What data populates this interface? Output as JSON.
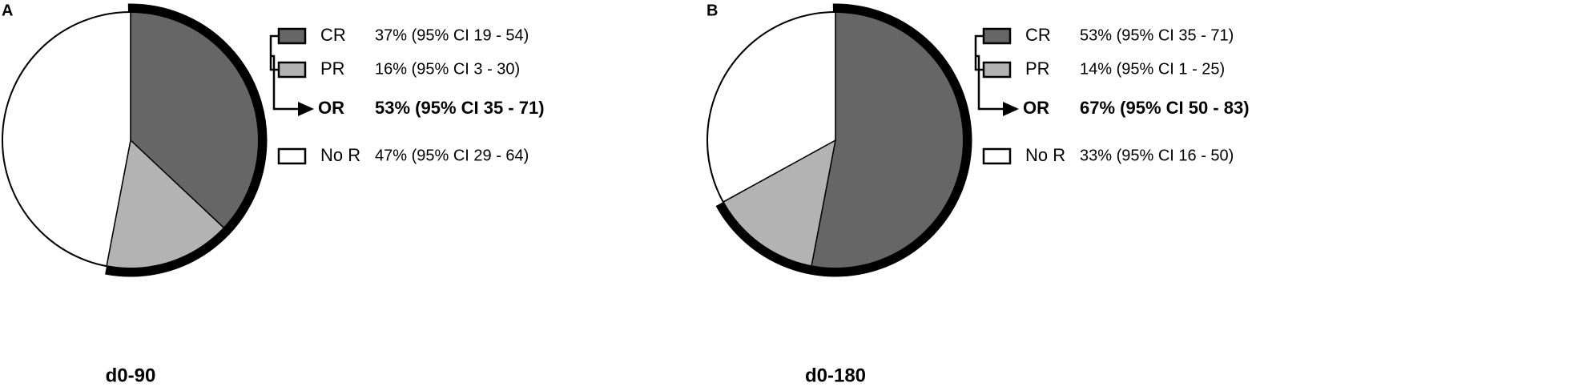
{
  "chart_data": [
    {
      "type": "pie",
      "panel": "A",
      "title": "d0-90",
      "categories": [
        "CR",
        "PR",
        "No R"
      ],
      "values": [
        37,
        16,
        47
      ],
      "value_labels": [
        "37% (95% CI 19 - 54)",
        "16% (95% CI 3 - 30)",
        "47% (95% CI 29 - 64)"
      ],
      "colors": [
        "#666666",
        "#b3b3b3",
        "#ffffff"
      ],
      "combined": {
        "label": "OR",
        "value": 53,
        "value_label": "53% (95% CI 35 - 71)",
        "color": "#000000"
      }
    },
    {
      "type": "pie",
      "panel": "B",
      "title": "d0-180",
      "categories": [
        "CR",
        "PR",
        "No R"
      ],
      "values": [
        53,
        14,
        33
      ],
      "value_labels": [
        "53% (95% CI 35 - 71)",
        "14% (95% CI 1 - 25)",
        "33% (95% CI 16 - 50)"
      ],
      "colors": [
        "#666666",
        "#b3b3b3",
        "#ffffff"
      ],
      "combined": {
        "label": "OR",
        "value": 67,
        "value_label": "67% (95% CI 50 - 83)",
        "color": "#000000"
      }
    }
  ]
}
